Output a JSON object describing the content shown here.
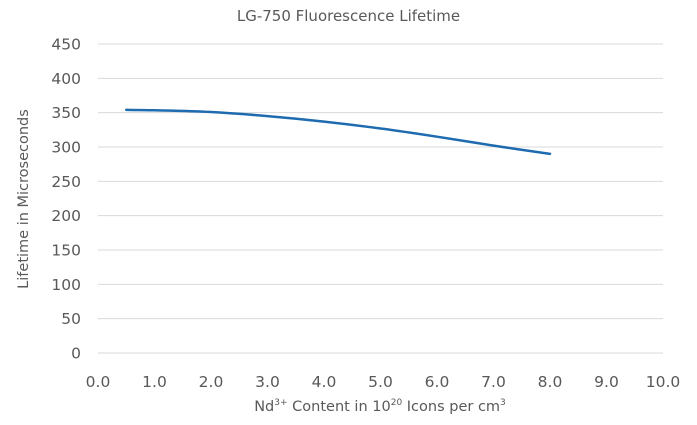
{
  "chart_data": {
    "type": "line",
    "title": "LG-750 Fluorescence Lifetime",
    "xlabel": {
      "prefix": "Nd",
      "prefix_sup": "3+",
      "middle": " Content in 10",
      "middle_sup": "20",
      "suffix": " Icons per cm",
      "suffix_sup": "3"
    },
    "ylabel": "Lifetime in Microseconds",
    "xlim": [
      0,
      10
    ],
    "ylim": [
      0,
      450
    ],
    "x_ticks": [
      "0.0",
      "1.0",
      "2.0",
      "3.0",
      "4.0",
      "5.0",
      "6.0",
      "7.0",
      "8.0",
      "9.0",
      "10.0"
    ],
    "y_ticks": [
      "0",
      "50",
      "100",
      "150",
      "200",
      "250",
      "300",
      "350",
      "400",
      "450"
    ],
    "grid": "horizontal",
    "series": [
      {
        "color": "#1F6BB0",
        "x": [
          0.5,
          1.0,
          2.0,
          3.0,
          4.0,
          5.0,
          6.0,
          7.0,
          8.0
        ],
        "y": [
          354,
          353.5,
          351,
          345,
          337,
          327,
          315,
          302,
          290
        ]
      }
    ]
  }
}
